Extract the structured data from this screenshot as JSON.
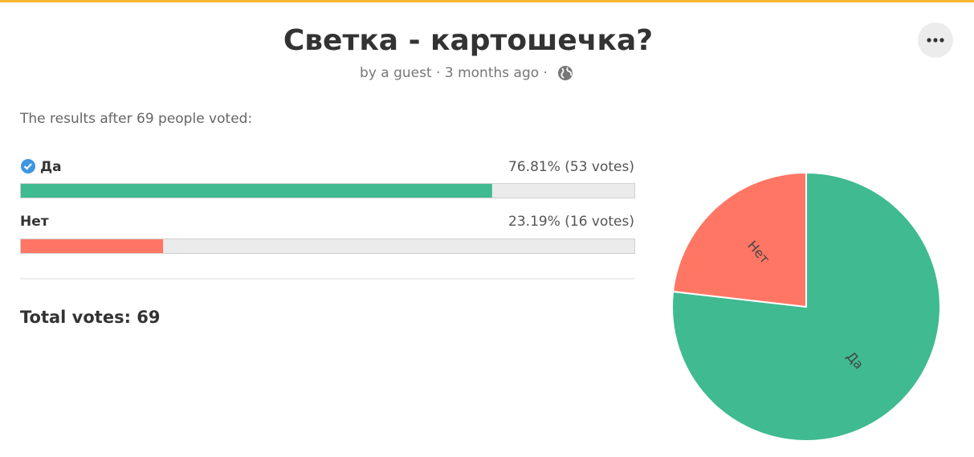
{
  "header": {
    "title": "Светка - картошечка?",
    "meta": "by a guest · 3 months ago ·"
  },
  "results": {
    "intro": "The results after 69 people voted:",
    "options": [
      {
        "label": "Да",
        "result": "76.81% (53 votes)",
        "percent": 76.81,
        "votes": 53,
        "color": "#3fba91"
      },
      {
        "label": "Нет",
        "result": "23.19% (16 votes)",
        "percent": 23.19,
        "votes": 16,
        "color": "#ff7664"
      }
    ],
    "total": "Total votes: 69"
  }
}
